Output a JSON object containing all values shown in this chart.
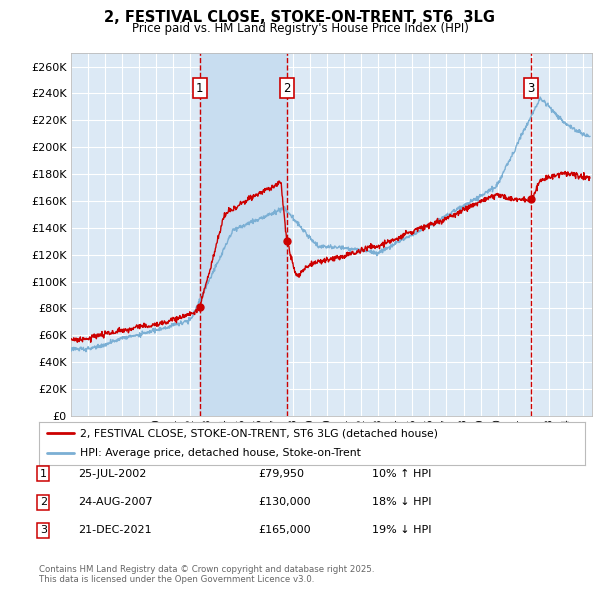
{
  "title": "2, FESTIVAL CLOSE, STOKE-ON-TRENT, ST6  3LG",
  "subtitle": "Price paid vs. HM Land Registry's House Price Index (HPI)",
  "legend_label_red": "2, FESTIVAL CLOSE, STOKE-ON-TRENT, ST6 3LG (detached house)",
  "legend_label_blue": "HPI: Average price, detached house, Stoke-on-Trent",
  "footnote": "Contains HM Land Registry data © Crown copyright and database right 2025.\nThis data is licensed under the Open Government Licence v3.0.",
  "transactions": [
    {
      "num": 1,
      "date": "25-JUL-2002",
      "price": "£79,950",
      "hpi": "10% ↑ HPI",
      "year": 2002.56
    },
    {
      "num": 2,
      "date": "24-AUG-2007",
      "price": "£130,000",
      "hpi": "18% ↓ HPI",
      "year": 2007.65
    },
    {
      "num": 3,
      "date": "21-DEC-2021",
      "price": "£165,000",
      "hpi": "19% ↓ HPI",
      "year": 2021.97
    }
  ],
  "background_color": "#ffffff",
  "plot_bg_color": "#dce9f5",
  "grid_color": "#ffffff",
  "red_color": "#cc0000",
  "blue_color": "#7bafd4",
  "shade_color": "#c8ddf0",
  "dashed_color": "#cc0000",
  "ylim": [
    0,
    270000
  ],
  "yticks": [
    0,
    20000,
    40000,
    60000,
    80000,
    100000,
    120000,
    140000,
    160000,
    180000,
    200000,
    220000,
    240000,
    260000
  ],
  "xlim_start": 1995.0,
  "xlim_end": 2025.5
}
